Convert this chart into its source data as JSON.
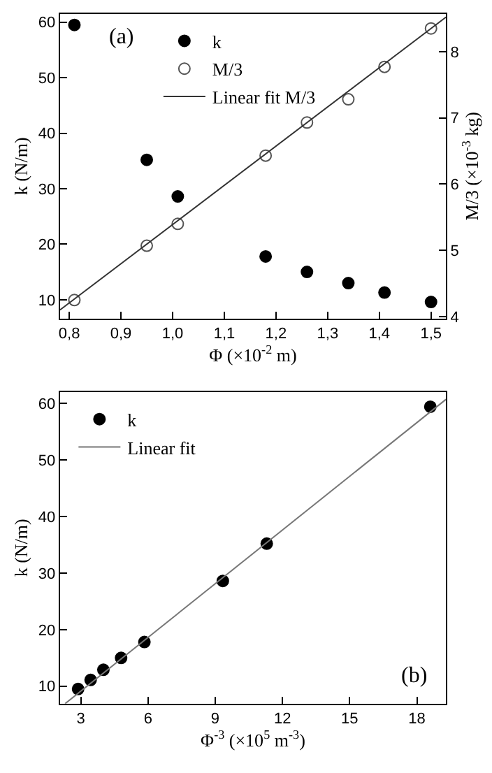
{
  "chart_data": [
    {
      "type": "scatter",
      "xlabel": "Φ (×10$^{-2}$ m)",
      "ylabel": "k (N/m)",
      "y2label": "M/3 (×10$^{-3}$ kg)",
      "annotations": [
        "(a)"
      ],
      "xlim": [
        0.782,
        1.529
      ],
      "xticks": [
        {
          "value": 0.8,
          "label": "0,8"
        },
        {
          "value": 0.9,
          "label": "0,9"
        },
        {
          "value": 1.0,
          "label": "1,0"
        },
        {
          "value": 1.1,
          "label": "1,1"
        },
        {
          "value": 1.2,
          "label": "1,2"
        },
        {
          "value": 1.3,
          "label": "1,3"
        },
        {
          "value": 1.4,
          "label": "1,4"
        },
        {
          "value": 1.5,
          "label": "1,5"
        }
      ],
      "ylim": [
        6.6,
        61.5
      ],
      "yticks": [
        10,
        20,
        30,
        40,
        50,
        60
      ],
      "y2lim": [
        3.97,
        8.57
      ],
      "y2ticks": [
        4,
        5,
        6,
        7,
        8
      ],
      "legend": "top left",
      "x": [
        0.81,
        0.95,
        1.01,
        1.18,
        1.26,
        1.34,
        1.41,
        1.5
      ],
      "series": [
        {
          "name": "k",
          "color": "#000000",
          "marker": "circle",
          "values": [
            59.5,
            35.2,
            28.6,
            17.8,
            15.0,
            13.0,
            11.3,
            9.6
          ]
        },
        {
          "name": "M/3",
          "color": "#555555",
          "marker": "circle-open",
          "axis": "y2",
          "values": [
            4.25,
            5.07,
            5.4,
            6.43,
            6.93,
            7.28,
            7.77,
            8.35
          ]
        },
        {
          "name": "Linear fit M/3",
          "type": "line",
          "color": "#333333",
          "axis": "y2",
          "x": [
            0.782,
            1.529
          ],
          "values": [
            4.1,
            8.52
          ]
        }
      ]
    },
    {
      "type": "scatter",
      "xlabel": "Φ$^{-3}$ (×10$^{5}$ m$^{-3}$)",
      "ylabel": "k (N/m)",
      "annotations": [
        "(b)"
      ],
      "xlim": [
        2.07,
        19.3
      ],
      "xticks": [
        3,
        6,
        9,
        12,
        15,
        18
      ],
      "ylim": [
        6.9,
        62
      ],
      "yticks": [
        10,
        20,
        30,
        40,
        50,
        60
      ],
      "legend": "top left",
      "x": [
        2.88,
        3.44,
        4.01,
        4.8,
        5.84,
        9.34,
        11.3,
        18.6
      ],
      "series": [
        {
          "name": "k",
          "color": "#000000",
          "marker": "circle",
          "values": [
            9.5,
            11.1,
            12.9,
            15.0,
            17.8,
            28.6,
            35.2,
            59.4
          ]
        },
        {
          "name": "Linear fit",
          "type": "line",
          "color": "#777777",
          "x": [
            2.3,
            19.3
          ],
          "values": [
            6.9,
            60.7
          ]
        }
      ]
    }
  ]
}
